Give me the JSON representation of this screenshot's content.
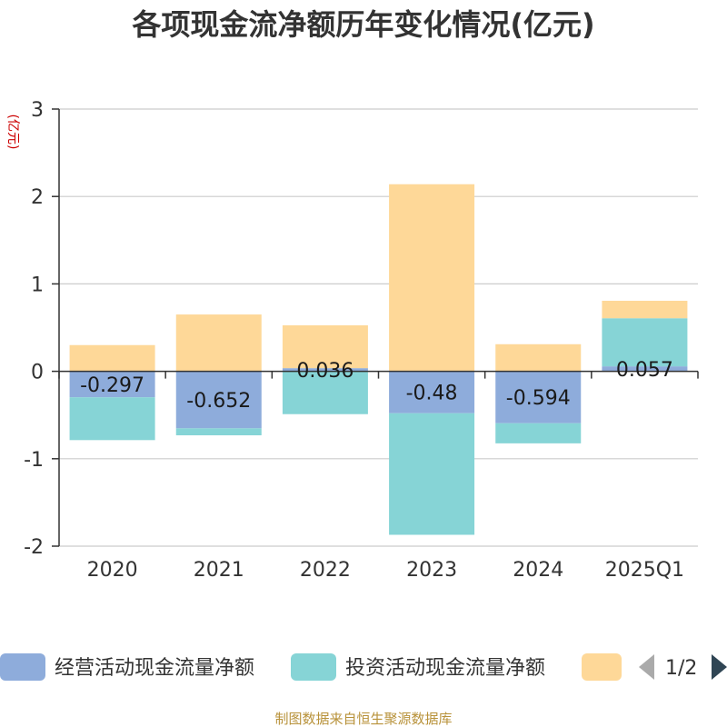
{
  "chart_data": {
    "type": "bar",
    "stacked": true,
    "title": "各项现金流净额历年变化情况(亿元)",
    "ylabel": "(亿元)",
    "categories": [
      "2020",
      "2021",
      "2022",
      "2023",
      "2024",
      "2025Q1"
    ],
    "ylim": [
      -2,
      3
    ],
    "yticks": [
      -2,
      -1,
      0,
      1,
      2,
      3
    ],
    "grid": true,
    "legend_position": "bottom",
    "series": [
      {
        "name": "经营活动现金流量净额",
        "color": "#8eacdb",
        "values": [
          -0.297,
          -0.652,
          0.036,
          -0.48,
          -0.594,
          0.057
        ],
        "labels": [
          "-0.297",
          "-0.652",
          "0.036",
          "-0.48",
          "-0.594",
          "0.057"
        ]
      },
      {
        "name": "投资活动现金流量净额",
        "color": "#86d4d6",
        "values": [
          -0.49,
          -0.08,
          -0.49,
          -1.39,
          -0.23,
          0.55
        ]
      },
      {
        "name": "",
        "color": "#fed898",
        "values": [
          0.3,
          0.65,
          0.49,
          2.14,
          0.31,
          0.2
        ]
      }
    ]
  },
  "legend": {
    "page": "1/2"
  },
  "source": "制图数据来自恒生聚源数据库"
}
